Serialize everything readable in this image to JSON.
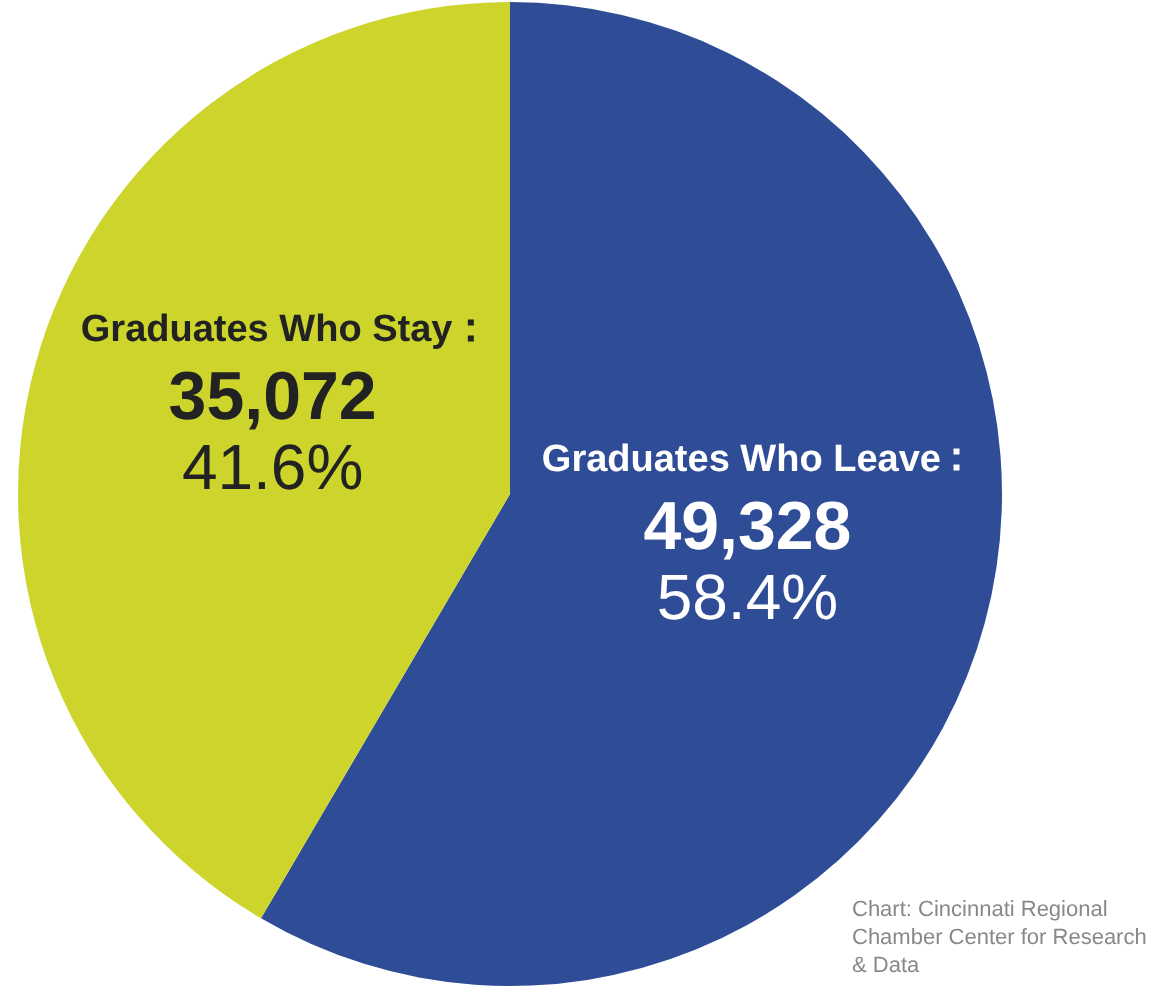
{
  "chart_data": {
    "type": "pie",
    "categories": [
      "Graduates Who Leave",
      "Graduates Who Stay"
    ],
    "values": [
      49328,
      35072
    ],
    "colors": [
      "#2f4d97",
      "#cdd52c"
    ],
    "value_labels": [
      "49,328\n58.4%",
      "35,072\n41.6%"
    ],
    "annotations": [
      "Chart: Cincinnati Regional Chamber Center for Research & Data"
    ]
  }
}
